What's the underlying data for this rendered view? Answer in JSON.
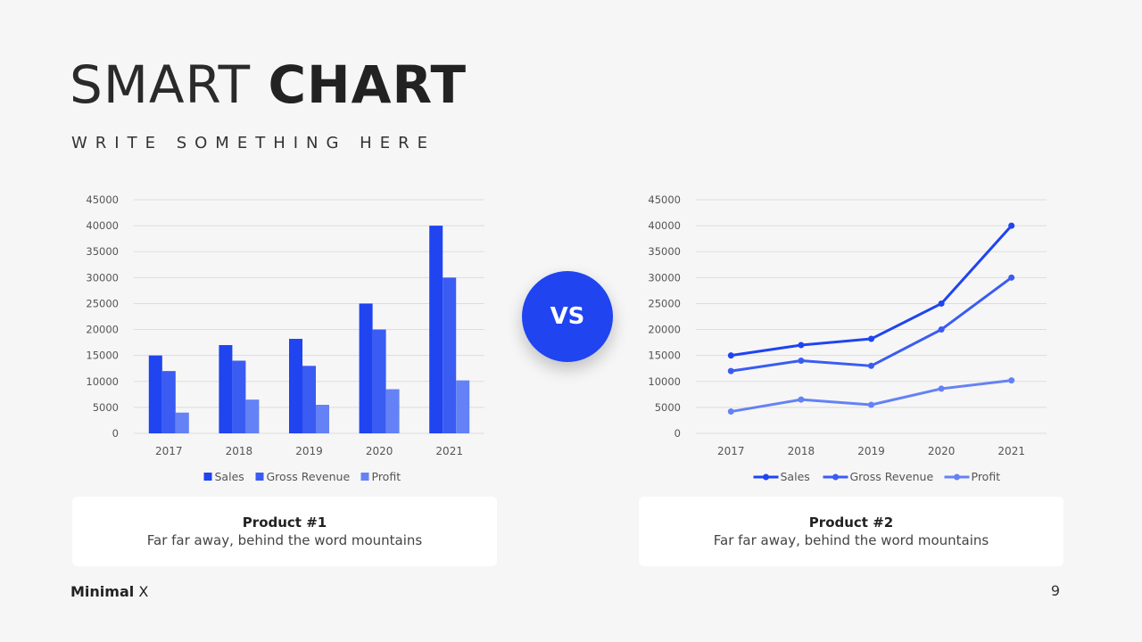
{
  "header": {
    "title_light": "SMART",
    "title_bold": "CHART",
    "subtitle": "WRITE SOMETHING HERE"
  },
  "vs_label": "VS",
  "cards": [
    {
      "title": "Product #1",
      "description": "Far far away, behind the word mountains"
    },
    {
      "title": "Product #2",
      "description": "Far far away, behind the word mountains"
    }
  ],
  "footer": {
    "brand_bold": "Minimal",
    "brand_light": "X",
    "page_number": "9"
  },
  "colors": {
    "sales": "#1f44f0",
    "gross_revenue": "#3a5cf2",
    "profit": "#6482f5",
    "accent": "#1f44f0"
  },
  "chart_data": [
    {
      "type": "bar",
      "categories": [
        "2017",
        "2018",
        "2019",
        "2020",
        "2021"
      ],
      "series": [
        {
          "name": "Sales",
          "values": [
            15000,
            17000,
            18200,
            25000,
            40000
          ]
        },
        {
          "name": "Gross Revenue",
          "values": [
            12000,
            14000,
            13000,
            20000,
            30000
          ]
        },
        {
          "name": "Profit",
          "values": [
            4000,
            6500,
            5500,
            8500,
            10200
          ]
        }
      ],
      "ylim": [
        0,
        45000
      ],
      "yticks": [
        "0",
        "5000",
        "10000",
        "15000",
        "20000",
        "25000",
        "30000",
        "35000",
        "40000",
        "45000"
      ],
      "grid": true,
      "legend": "bottom"
    },
    {
      "type": "line",
      "categories": [
        "2017",
        "2018",
        "2019",
        "2020",
        "2021"
      ],
      "series": [
        {
          "name": "Sales",
          "values": [
            15000,
            17000,
            18200,
            25000,
            40000
          ]
        },
        {
          "name": "Gross Revenue",
          "values": [
            12000,
            14000,
            13000,
            20000,
            30000
          ]
        },
        {
          "name": "Profit",
          "values": [
            4200,
            6500,
            5500,
            8600,
            10200
          ]
        }
      ],
      "ylim": [
        0,
        45000
      ],
      "yticks": [
        "0",
        "5000",
        "10000",
        "15000",
        "20000",
        "25000",
        "30000",
        "35000",
        "40000",
        "45000"
      ],
      "grid": true,
      "legend": "bottom"
    }
  ]
}
